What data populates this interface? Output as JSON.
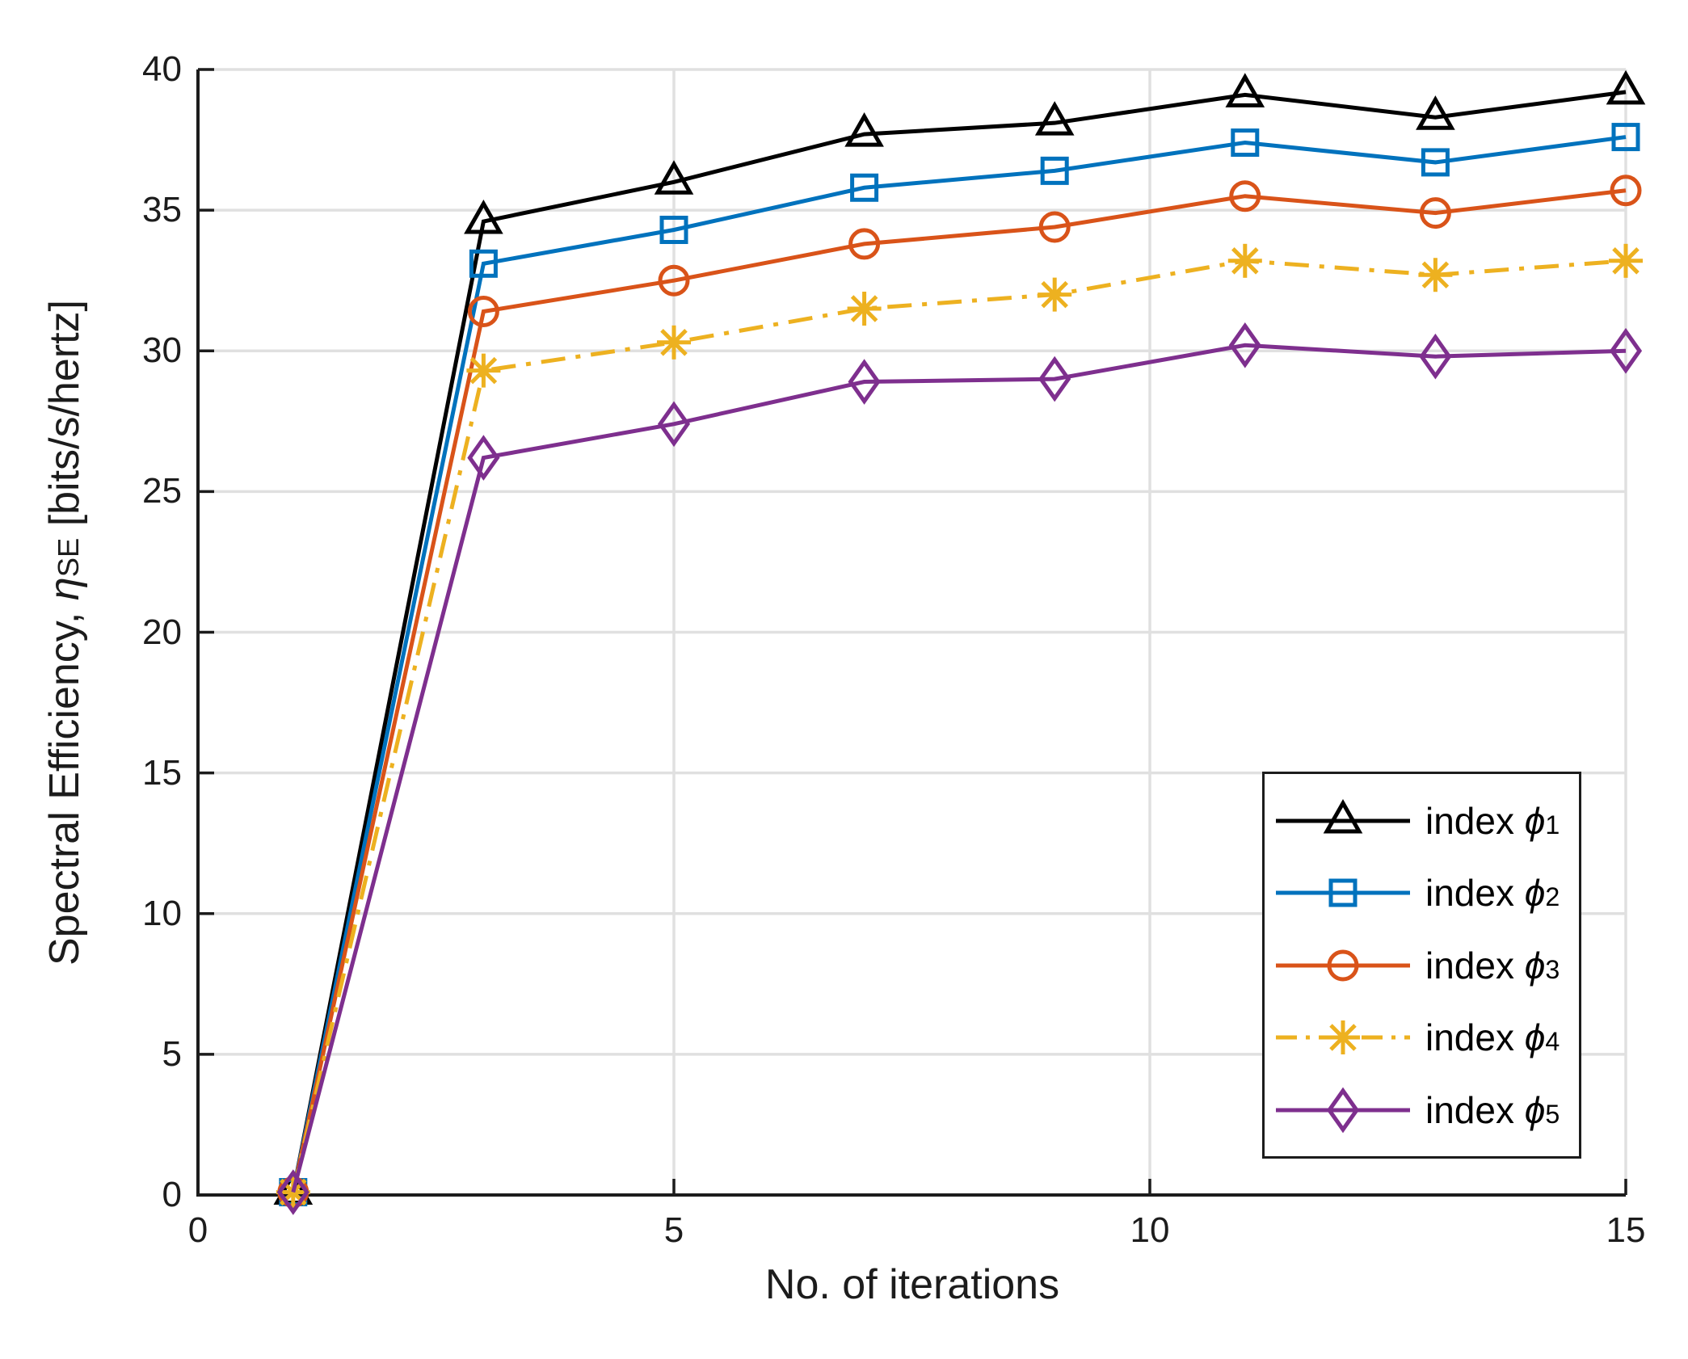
{
  "figure": {
    "background": "#ffffff"
  },
  "chart_data": {
    "type": "line",
    "title": "",
    "x": [
      1,
      3,
      5,
      7,
      9,
      11,
      13,
      15
    ],
    "series": [
      {
        "name": "index phi_1",
        "label_prefix": "index ",
        "label_symbol": "ϕ",
        "label_subscript": "1",
        "color": "#000000",
        "marker": "triangle-up",
        "linestyle": "solid",
        "values": [
          0.1,
          34.6,
          36.0,
          37.7,
          38.1,
          39.1,
          38.3,
          39.2
        ]
      },
      {
        "name": "index phi_2",
        "label_prefix": "index ",
        "label_symbol": "ϕ",
        "label_subscript": "2",
        "color": "#0072BD",
        "marker": "square",
        "linestyle": "solid",
        "values": [
          0.1,
          33.1,
          34.3,
          35.8,
          36.4,
          37.4,
          36.7,
          37.6
        ]
      },
      {
        "name": "index phi_3",
        "label_prefix": "index ",
        "label_symbol": "ϕ",
        "label_subscript": "3",
        "color": "#D95319",
        "marker": "circle",
        "linestyle": "solid",
        "values": [
          0.1,
          31.4,
          32.5,
          33.8,
          34.4,
          35.5,
          34.9,
          35.7
        ]
      },
      {
        "name": "index phi_4",
        "label_prefix": "index ",
        "label_symbol": "ϕ",
        "label_subscript": "4",
        "color": "#EDB120",
        "marker": "asterisk",
        "linestyle": "dash-dot",
        "values": [
          0.1,
          29.3,
          30.3,
          31.5,
          32.0,
          33.2,
          32.7,
          33.2
        ]
      },
      {
        "name": "index phi_5",
        "label_prefix": "index ",
        "label_symbol": "ϕ",
        "label_subscript": "5",
        "color": "#7E2F8E",
        "marker": "diamond",
        "linestyle": "solid",
        "values": [
          0.1,
          26.2,
          27.4,
          28.9,
          29.0,
          30.2,
          29.8,
          30.0
        ]
      }
    ],
    "xlabel": "No. of iterations",
    "ylabel": {
      "prefix": "Spectral Efficiency, ",
      "symbol": "η",
      "subscript": "SE",
      "suffix": " [bits/s/hertz]"
    },
    "xlim": [
      0,
      15
    ],
    "ylim": [
      0,
      40
    ],
    "xticks": {
      "values": [
        0,
        5,
        10,
        15
      ],
      "labels": [
        "0",
        "5",
        "10",
        "15"
      ]
    },
    "yticks": {
      "values": [
        0,
        5,
        10,
        15,
        20,
        25,
        30,
        35,
        40
      ],
      "labels": [
        "0",
        "5",
        "10",
        "15",
        "20",
        "25",
        "30",
        "35",
        "40"
      ]
    },
    "grid": "on",
    "legend_position": "inside-lower-right",
    "colors": {
      "grid": "#e0e0e0",
      "axis": "#1c1c1c",
      "background": "#ffffff"
    }
  }
}
